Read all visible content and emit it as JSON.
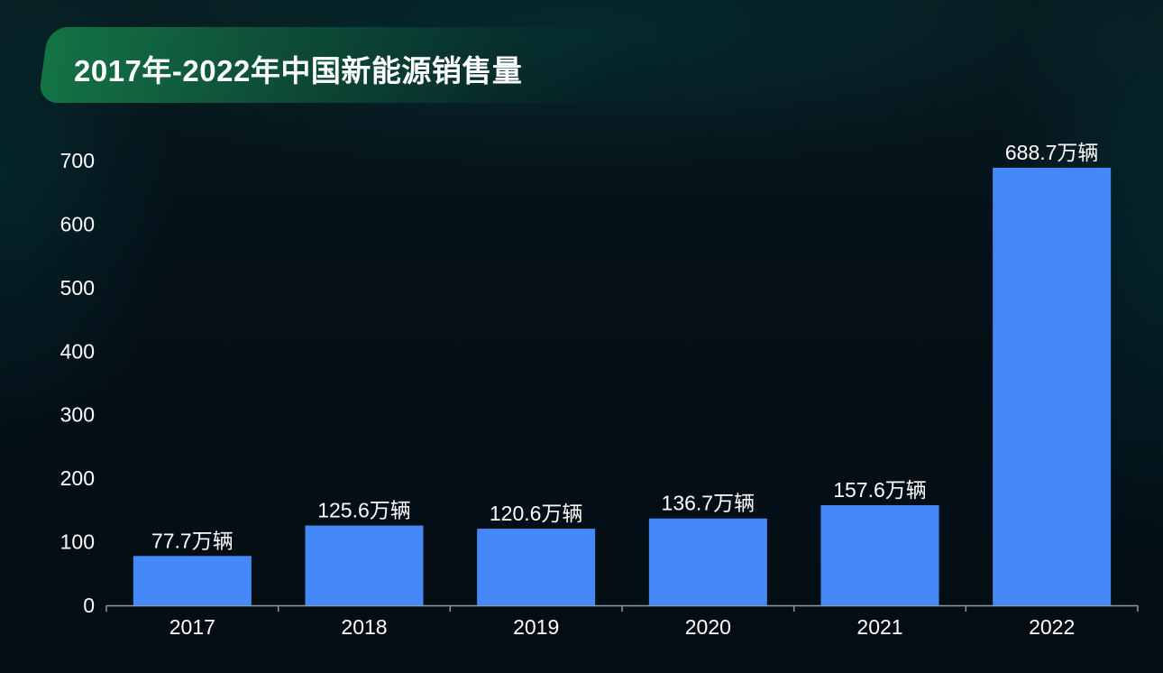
{
  "title": "2017年-2022年中国新能源销售量",
  "colors": {
    "bar": "#4589f8",
    "text": "#ffffff",
    "axis": "#8a9aa6",
    "banner": "#178a55"
  },
  "chart_data": {
    "type": "bar",
    "title": "2017年-2022年中国新能源销售量",
    "xlabel": "",
    "ylabel": "",
    "categories": [
      "2017",
      "2018",
      "2019",
      "2020",
      "2021",
      "2022"
    ],
    "values": [
      77.7,
      125.6,
      120.6,
      136.7,
      157.6,
      688.7
    ],
    "data_labels": [
      "77.7万辆",
      "125.6万辆",
      "120.6万辆",
      "136.7万辆",
      "157.6万辆",
      "688.7万辆"
    ],
    "ylim": [
      0,
      700
    ],
    "yticks": [
      "0",
      "100",
      "200",
      "300",
      "400",
      "500",
      "600",
      "700"
    ],
    "grid": false,
    "legend": "none"
  }
}
